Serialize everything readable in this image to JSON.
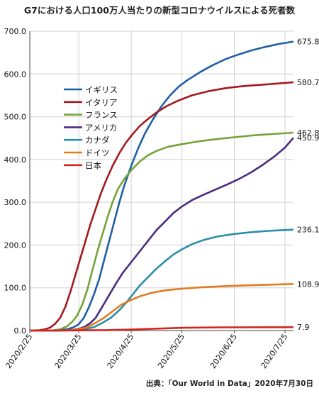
{
  "chart_data": {
    "type": "line",
    "title": "G7における人口100万人当たりの新型コロナウイルスによる死者数",
    "source": "出典：「Our World in Data」2020年7月30日",
    "xlabel": "",
    "ylabel": "",
    "x_start": "2020-02-25",
    "x_end": "2020-07-30",
    "x_tick_labels": [
      "2020/2/25",
      "2020/3/25",
      "2020/4/25",
      "2020/5/25",
      "2020/6/25",
      "2020/7/25"
    ],
    "x_tick_dates": [
      "2020-02-25",
      "2020-03-25",
      "2020-04-25",
      "2020-05-25",
      "2020-06-25",
      "2020-07-25"
    ],
    "ylim": [
      0,
      700
    ],
    "y_ticks": [
      0,
      100,
      200,
      300,
      400,
      500,
      600,
      700
    ],
    "y_tick_labels": [
      "0.0",
      "100.0",
      "200.0",
      "300.0",
      "400.0",
      "500.0",
      "600.0",
      "700.0"
    ],
    "grid": true,
    "legend_position": "top-left",
    "series": [
      {
        "name": "イギリス",
        "color": "#1f5fa6",
        "end_label": "675.8",
        "points": [
          [
            "2020-02-25",
            0
          ],
          [
            "2020-03-05",
            0
          ],
          [
            "2020-03-12",
            0.5
          ],
          [
            "2020-03-18",
            3
          ],
          [
            "2020-03-22",
            8
          ],
          [
            "2020-03-25",
            15
          ],
          [
            "2020-03-28",
            30
          ],
          [
            "2020-03-31",
            55
          ],
          [
            "2020-04-03",
            85
          ],
          [
            "2020-04-06",
            120
          ],
          [
            "2020-04-09",
            165
          ],
          [
            "2020-04-12",
            210
          ],
          [
            "2020-04-15",
            255
          ],
          [
            "2020-04-18",
            300
          ],
          [
            "2020-04-21",
            340
          ],
          [
            "2020-04-25",
            385
          ],
          [
            "2020-04-29",
            425
          ],
          [
            "2020-05-03",
            460
          ],
          [
            "2020-05-08",
            495
          ],
          [
            "2020-05-13",
            525
          ],
          [
            "2020-05-18",
            550
          ],
          [
            "2020-05-23",
            570
          ],
          [
            "2020-05-28",
            585
          ],
          [
            "2020-06-05",
            605
          ],
          [
            "2020-06-12",
            620
          ],
          [
            "2020-06-20",
            635
          ],
          [
            "2020-06-27",
            645
          ],
          [
            "2020-07-05",
            655
          ],
          [
            "2020-07-13",
            663
          ],
          [
            "2020-07-21",
            670
          ],
          [
            "2020-07-30",
            675.8
          ]
        ]
      },
      {
        "name": "イタリア",
        "color": "#a3191f",
        "end_label": "580.7",
        "points": [
          [
            "2020-02-25",
            0
          ],
          [
            "2020-02-28",
            0.3
          ],
          [
            "2020-03-02",
            1
          ],
          [
            "2020-03-05",
            3
          ],
          [
            "2020-03-08",
            7
          ],
          [
            "2020-03-11",
            16
          ],
          [
            "2020-03-14",
            30
          ],
          [
            "2020-03-17",
            55
          ],
          [
            "2020-03-20",
            90
          ],
          [
            "2020-03-23",
            130
          ],
          [
            "2020-03-26",
            170
          ],
          [
            "2020-03-29",
            210
          ],
          [
            "2020-04-01",
            250
          ],
          [
            "2020-04-04",
            285
          ],
          [
            "2020-04-07",
            320
          ],
          [
            "2020-04-10",
            350
          ],
          [
            "2020-04-14",
            385
          ],
          [
            "2020-04-18",
            415
          ],
          [
            "2020-04-22",
            440
          ],
          [
            "2020-04-26",
            460
          ],
          [
            "2020-04-30",
            478
          ],
          [
            "2020-05-05",
            495
          ],
          [
            "2020-05-10",
            510
          ],
          [
            "2020-05-16",
            525
          ],
          [
            "2020-05-23",
            538
          ],
          [
            "2020-05-31",
            550
          ],
          [
            "2020-06-10",
            560
          ],
          [
            "2020-06-20",
            567
          ],
          [
            "2020-07-01",
            572
          ],
          [
            "2020-07-15",
            576
          ],
          [
            "2020-07-30",
            580.7
          ]
        ]
      },
      {
        "name": "フランス",
        "color": "#74a33a",
        "end_label": "462.8",
        "points": [
          [
            "2020-02-25",
            0
          ],
          [
            "2020-03-10",
            0.5
          ],
          [
            "2020-03-14",
            3
          ],
          [
            "2020-03-18",
            10
          ],
          [
            "2020-03-21",
            20
          ],
          [
            "2020-03-24",
            35
          ],
          [
            "2020-03-27",
            60
          ],
          [
            "2020-03-30",
            95
          ],
          [
            "2020-04-02",
            140
          ],
          [
            "2020-04-05",
            185
          ],
          [
            "2020-04-08",
            225
          ],
          [
            "2020-04-11",
            265
          ],
          [
            "2020-04-14",
            300
          ],
          [
            "2020-04-17",
            330
          ],
          [
            "2020-04-21",
            355
          ],
          [
            "2020-04-25",
            375
          ],
          [
            "2020-04-30",
            395
          ],
          [
            "2020-05-05",
            410
          ],
          [
            "2020-05-10",
            420
          ],
          [
            "2020-05-17",
            430
          ],
          [
            "2020-05-25",
            436
          ],
          [
            "2020-06-05",
            443
          ],
          [
            "2020-06-15",
            448
          ],
          [
            "2020-06-25",
            452
          ],
          [
            "2020-07-05",
            456
          ],
          [
            "2020-07-15",
            459
          ],
          [
            "2020-07-30",
            462.8
          ]
        ]
      },
      {
        "name": "アメリカ",
        "color": "#4b2c7e",
        "end_label": "450.9",
        "points": [
          [
            "2020-02-25",
            0
          ],
          [
            "2020-03-10",
            0.1
          ],
          [
            "2020-03-18",
            0.5
          ],
          [
            "2020-03-22",
            2
          ],
          [
            "2020-03-26",
            5
          ],
          [
            "2020-03-29",
            10
          ],
          [
            "2020-04-01",
            18
          ],
          [
            "2020-04-04",
            30
          ],
          [
            "2020-04-07",
            50
          ],
          [
            "2020-04-10",
            70
          ],
          [
            "2020-04-13",
            90
          ],
          [
            "2020-04-16",
            110
          ],
          [
            "2020-04-20",
            135
          ],
          [
            "2020-04-25",
            160
          ],
          [
            "2020-04-30",
            185
          ],
          [
            "2020-05-05",
            210
          ],
          [
            "2020-05-10",
            235
          ],
          [
            "2020-05-15",
            255
          ],
          [
            "2020-05-20",
            275
          ],
          [
            "2020-05-25",
            290
          ],
          [
            "2020-05-31",
            305
          ],
          [
            "2020-06-07",
            318
          ],
          [
            "2020-06-14",
            330
          ],
          [
            "2020-06-21",
            342
          ],
          [
            "2020-06-28",
            355
          ],
          [
            "2020-07-05",
            370
          ],
          [
            "2020-07-12",
            388
          ],
          [
            "2020-07-19",
            408
          ],
          [
            "2020-07-25",
            428
          ],
          [
            "2020-07-30",
            450.9
          ]
        ]
      },
      {
        "name": "カナダ",
        "color": "#2a8ea8",
        "end_label": "236.1",
        "points": [
          [
            "2020-02-25",
            0
          ],
          [
            "2020-03-15",
            0.2
          ],
          [
            "2020-03-22",
            1
          ],
          [
            "2020-03-28",
            3
          ],
          [
            "2020-04-03",
            8
          ],
          [
            "2020-04-08",
            18
          ],
          [
            "2020-04-13",
            30
          ],
          [
            "2020-04-18",
            48
          ],
          [
            "2020-04-22",
            65
          ],
          [
            "2020-04-26",
            85
          ],
          [
            "2020-04-30",
            105
          ],
          [
            "2020-05-05",
            125
          ],
          [
            "2020-05-10",
            145
          ],
          [
            "2020-05-15",
            162
          ],
          [
            "2020-05-20",
            178
          ],
          [
            "2020-05-25",
            190
          ],
          [
            "2020-05-31",
            202
          ],
          [
            "2020-06-07",
            212
          ],
          [
            "2020-06-15",
            220
          ],
          [
            "2020-06-25",
            226
          ],
          [
            "2020-07-05",
            230
          ],
          [
            "2020-07-15",
            233
          ],
          [
            "2020-07-30",
            236.1
          ]
        ]
      },
      {
        "name": "ドイツ",
        "color": "#e37a1f",
        "end_label": "108.9",
        "points": [
          [
            "2020-02-25",
            0
          ],
          [
            "2020-03-15",
            0.2
          ],
          [
            "2020-03-20",
            1
          ],
          [
            "2020-03-25",
            3
          ],
          [
            "2020-03-30",
            8
          ],
          [
            "2020-04-04",
            18
          ],
          [
            "2020-04-09",
            30
          ],
          [
            "2020-04-14",
            45
          ],
          [
            "2020-04-19",
            60
          ],
          [
            "2020-04-24",
            70
          ],
          [
            "2020-04-30",
            80
          ],
          [
            "2020-05-07",
            88
          ],
          [
            "2020-05-15",
            94
          ],
          [
            "2020-05-25",
            98
          ],
          [
            "2020-06-05",
            101
          ],
          [
            "2020-06-20",
            104
          ],
          [
            "2020-07-05",
            106
          ],
          [
            "2020-07-30",
            108.9
          ]
        ]
      },
      {
        "name": "日本",
        "color": "#d42420",
        "end_label": "7.9",
        "points": [
          [
            "2020-02-25",
            0
          ],
          [
            "2020-03-20",
            0.3
          ],
          [
            "2020-04-10",
            1
          ],
          [
            "2020-04-25",
            2.5
          ],
          [
            "2020-05-10",
            4.5
          ],
          [
            "2020-05-25",
            6.5
          ],
          [
            "2020-06-15",
            7.5
          ],
          [
            "2020-07-30",
            7.9
          ]
        ]
      }
    ]
  }
}
